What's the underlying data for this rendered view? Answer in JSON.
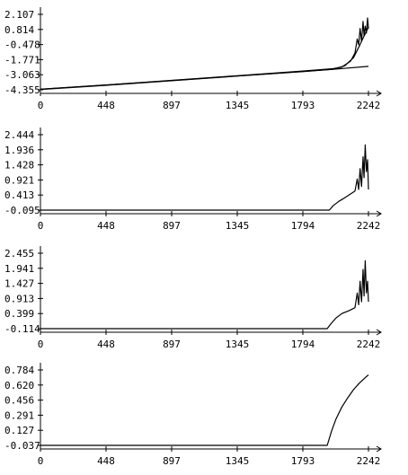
{
  "chart_data": [
    {
      "type": "line",
      "title": "",
      "xlabel": "",
      "ylabel": "",
      "x_ticks": [
        "0",
        "448",
        "897",
        "1345",
        "1793",
        "2242"
      ],
      "y_ticks": [
        "2.107",
        "0.814",
        "-0.478",
        "-1.771",
        "-3.063",
        "-4.355"
      ],
      "xlim": [
        0,
        2242
      ],
      "ylim": [
        -4.355,
        2.107
      ],
      "grid": false,
      "series": [
        {
          "values": [
            [
              0,
              -4.3
            ],
            [
              448,
              -3.95
            ],
            [
              897,
              -3.55
            ],
            [
              1345,
              -3.15
            ],
            [
              1793,
              -2.75
            ],
            [
              2000,
              -2.55
            ],
            [
              2060,
              -2.4
            ],
            [
              2120,
              -1.9
            ],
            [
              2150,
              -1.2
            ],
            [
              2165,
              0.0
            ],
            [
              2175,
              -0.5
            ],
            [
              2185,
              0.9
            ],
            [
              2195,
              -0.2
            ],
            [
              2205,
              1.5
            ],
            [
              2212,
              0.3
            ],
            [
              2220,
              1.1
            ],
            [
              2228,
              0.5
            ],
            [
              2236,
              1.8
            ],
            [
              2242,
              0.9
            ]
          ]
        },
        {
          "values": [
            [
              0,
              -4.33
            ],
            [
              448,
              -3.97
            ],
            [
              897,
              -3.58
            ],
            [
              1345,
              -3.18
            ],
            [
              1793,
              -2.8
            ],
            [
              2000,
              -2.6
            ],
            [
              2080,
              -2.3
            ],
            [
              2140,
              -1.6
            ],
            [
              2180,
              -0.6
            ],
            [
              2210,
              0.2
            ],
            [
              2242,
              1.0
            ]
          ]
        },
        {
          "values": [
            [
              0,
              -4.3
            ],
            [
              448,
              -3.94
            ],
            [
              897,
              -3.56
            ],
            [
              1345,
              -3.17
            ],
            [
              1793,
              -2.78
            ],
            [
              2000,
              -2.6
            ],
            [
              2242,
              -2.35
            ]
          ]
        }
      ]
    },
    {
      "type": "line",
      "title": "",
      "xlabel": "",
      "ylabel": "",
      "x_ticks": [
        "0",
        "448",
        "897",
        "1345",
        "1794",
        "2242"
      ],
      "y_ticks": [
        "2.444",
        "1.936",
        "1.428",
        "0.921",
        "0.413",
        "-0.095"
      ],
      "xlim": [
        0,
        2242
      ],
      "ylim": [
        -0.095,
        2.444
      ],
      "grid": false,
      "series": [
        {
          "values": [
            [
              0,
              -0.095
            ],
            [
              1000,
              -0.095
            ],
            [
              1975,
              -0.095
            ],
            [
              2000,
              0.05
            ],
            [
              2040,
              0.2
            ],
            [
              2080,
              0.32
            ],
            [
              2120,
              0.45
            ],
            [
              2150,
              0.55
            ],
            [
              2165,
              0.95
            ],
            [
              2175,
              0.6
            ],
            [
              2185,
              1.3
            ],
            [
              2195,
              0.7
            ],
            [
              2205,
              1.7
            ],
            [
              2212,
              1.0
            ],
            [
              2220,
              2.1
            ],
            [
              2228,
              1.2
            ],
            [
              2236,
              1.6
            ],
            [
              2242,
              0.6
            ]
          ]
        }
      ]
    },
    {
      "type": "line",
      "title": "",
      "xlabel": "",
      "ylabel": "",
      "x_ticks": [
        "0",
        "448",
        "897",
        "1345",
        "1794",
        "2242"
      ],
      "y_ticks": [
        "2.455",
        "1.941",
        "1.427",
        "0.913",
        "0.399",
        "-0.114"
      ],
      "xlim": [
        0,
        2242
      ],
      "ylim": [
        -0.114,
        2.455
      ],
      "grid": false,
      "series": [
        {
          "values": [
            [
              0,
              -0.114
            ],
            [
              1000,
              -0.114
            ],
            [
              1960,
              -0.114
            ],
            [
              1985,
              0.05
            ],
            [
              2020,
              0.25
            ],
            [
              2060,
              0.4
            ],
            [
              2110,
              0.5
            ],
            [
              2150,
              0.6
            ],
            [
              2165,
              1.1
            ],
            [
              2175,
              0.7
            ],
            [
              2185,
              1.5
            ],
            [
              2195,
              0.8
            ],
            [
              2205,
              1.9
            ],
            [
              2212,
              1.0
            ],
            [
              2220,
              2.2
            ],
            [
              2228,
              1.1
            ],
            [
              2236,
              1.5
            ],
            [
              2242,
              0.8
            ]
          ]
        }
      ]
    },
    {
      "type": "line",
      "title": "",
      "xlabel": "",
      "ylabel": "",
      "x_ticks": [
        "0",
        "448",
        "897",
        "1345",
        "1793",
        "2242"
      ],
      "y_ticks": [
        "0.784",
        "0.620",
        "0.456",
        "0.291",
        "0.127",
        "-0.037"
      ],
      "xlim": [
        0,
        2242
      ],
      "ylim": [
        -0.037,
        0.784
      ],
      "grid": false,
      "series": [
        {
          "values": [
            [
              0,
              -0.037
            ],
            [
              1000,
              -0.037
            ],
            [
              1960,
              -0.037
            ],
            [
              1990,
              0.12
            ],
            [
              2020,
              0.25
            ],
            [
              2060,
              0.38
            ],
            [
              2100,
              0.48
            ],
            [
              2140,
              0.57
            ],
            [
              2180,
              0.64
            ],
            [
              2220,
              0.7
            ],
            [
              2242,
              0.73
            ]
          ]
        }
      ]
    }
  ]
}
